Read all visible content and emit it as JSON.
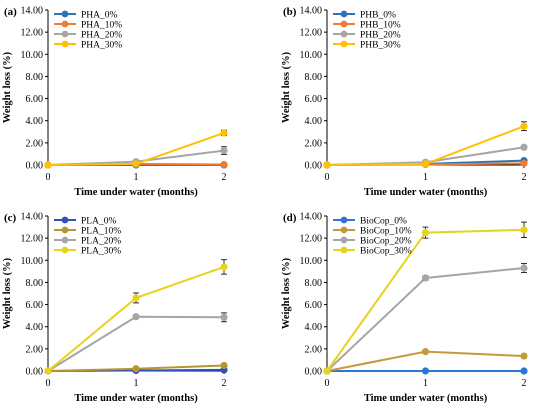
{
  "chart_data": [
    {
      "type": "line",
      "panel_label": "(a)",
      "xlabel": "Time under water (months)",
      "ylabel": "Weight loss (%)",
      "x": [
        0,
        1,
        2
      ],
      "x_ticks": [
        "0",
        "1",
        "2"
      ],
      "ylim": [
        0,
        14
      ],
      "y_ticks": [
        "0.00",
        "2.00",
        "4.00",
        "6.00",
        "8.00",
        "10.00",
        "12.00",
        "14.00"
      ],
      "legend_position": "top-left",
      "grid": false,
      "series": [
        {
          "name": "PHA_0%",
          "color": "#2e75b6",
          "values": [
            0,
            0,
            0
          ],
          "errors": [
            0,
            0,
            0
          ]
        },
        {
          "name": "PHA_10%",
          "color": "#f07b32",
          "values": [
            0,
            0.1,
            0.05
          ],
          "errors": [
            0,
            0.05,
            0.05
          ]
        },
        {
          "name": "PHA_20%",
          "color": "#a6a6a6",
          "values": [
            0,
            0.3,
            1.3
          ],
          "errors": [
            0,
            0.1,
            0.35
          ]
        },
        {
          "name": "PHA_30%",
          "color": "#ffc000",
          "values": [
            0,
            0.1,
            2.9
          ],
          "errors": [
            0,
            0.05,
            0.25
          ]
        }
      ]
    },
    {
      "type": "line",
      "panel_label": "(b)",
      "xlabel": "Time under water (months)",
      "ylabel": "Weight loss (%)",
      "x": [
        0,
        1,
        2
      ],
      "x_ticks": [
        "0",
        "1",
        "2"
      ],
      "ylim": [
        0,
        14
      ],
      "y_ticks": [
        "0.00",
        "2.00",
        "4.00",
        "6.00",
        "8.00",
        "10.00",
        "12.00",
        "14.00"
      ],
      "legend_position": "top-left",
      "grid": false,
      "series": [
        {
          "name": "PHB_0%",
          "color": "#2e75b6",
          "values": [
            0,
            0.1,
            0.4
          ],
          "errors": [
            0,
            0.05,
            0.1
          ]
        },
        {
          "name": "PHB_10%",
          "color": "#f07b32",
          "values": [
            0,
            0.05,
            0.15
          ],
          "errors": [
            0,
            0.05,
            0.05
          ]
        },
        {
          "name": "PHB_20%",
          "color": "#a6a6a6",
          "values": [
            0,
            0.25,
            1.6
          ],
          "errors": [
            0,
            0.1,
            0.15
          ]
        },
        {
          "name": "PHB_30%",
          "color": "#ffc000",
          "values": [
            0,
            0.1,
            3.5
          ],
          "errors": [
            0,
            0.05,
            0.4
          ]
        }
      ]
    },
    {
      "type": "line",
      "panel_label": "(c)",
      "xlabel": "Time under water (months)",
      "ylabel": "Weight loss (%)",
      "x": [
        0,
        1,
        2
      ],
      "x_ticks": [
        "0",
        "1",
        "2"
      ],
      "ylim": [
        0,
        14
      ],
      "y_ticks": [
        "0.00",
        "2.00",
        "4.00",
        "6.00",
        "8.00",
        "10.00",
        "12.00",
        "14.00"
      ],
      "legend_position": "top-left",
      "grid": false,
      "series": [
        {
          "name": "PLA_0%",
          "color": "#2e4fbf",
          "values": [
            0,
            0.05,
            0.1
          ],
          "errors": [
            0,
            0.05,
            0.05
          ]
        },
        {
          "name": "PLA_10%",
          "color": "#b8962e",
          "values": [
            0,
            0.2,
            0.5
          ],
          "errors": [
            0,
            0.1,
            0.1
          ]
        },
        {
          "name": "PLA_20%",
          "color": "#a6a6a6",
          "values": [
            0,
            4.9,
            4.85
          ],
          "errors": [
            0,
            0.15,
            0.4
          ]
        },
        {
          "name": "PLA_30%",
          "color": "#e6d31e",
          "values": [
            0,
            6.6,
            9.4
          ],
          "errors": [
            0,
            0.45,
            0.65
          ]
        }
      ]
    },
    {
      "type": "line",
      "panel_label": "(d)",
      "xlabel": "Time under water (months)",
      "ylabel": "Weight loss (%)",
      "x": [
        0,
        1,
        2
      ],
      "x_ticks": [
        "0",
        "1",
        "2"
      ],
      "ylim": [
        0,
        14
      ],
      "y_ticks": [
        "0.00",
        "2.00",
        "4.00",
        "6.00",
        "8.00",
        "10.00",
        "12.00",
        "14.00"
      ],
      "legend_position": "top-left",
      "grid": false,
      "series": [
        {
          "name": "BioCop_0%",
          "color": "#2e75d6",
          "values": [
            0,
            0,
            0
          ],
          "errors": [
            0,
            0,
            0
          ]
        },
        {
          "name": "BioCop_10%",
          "color": "#c49a3a",
          "values": [
            0,
            1.75,
            1.35
          ],
          "errors": [
            0,
            0.15,
            0.15
          ]
        },
        {
          "name": "BioCop_20%",
          "color": "#a6a6a6",
          "values": [
            0,
            8.4,
            9.3
          ],
          "errors": [
            0,
            0.2,
            0.4
          ]
        },
        {
          "name": "BioCop_30%",
          "color": "#e6d31e",
          "values": [
            0,
            12.5,
            12.75
          ],
          "errors": [
            0,
            0.5,
            0.7
          ]
        }
      ]
    }
  ]
}
